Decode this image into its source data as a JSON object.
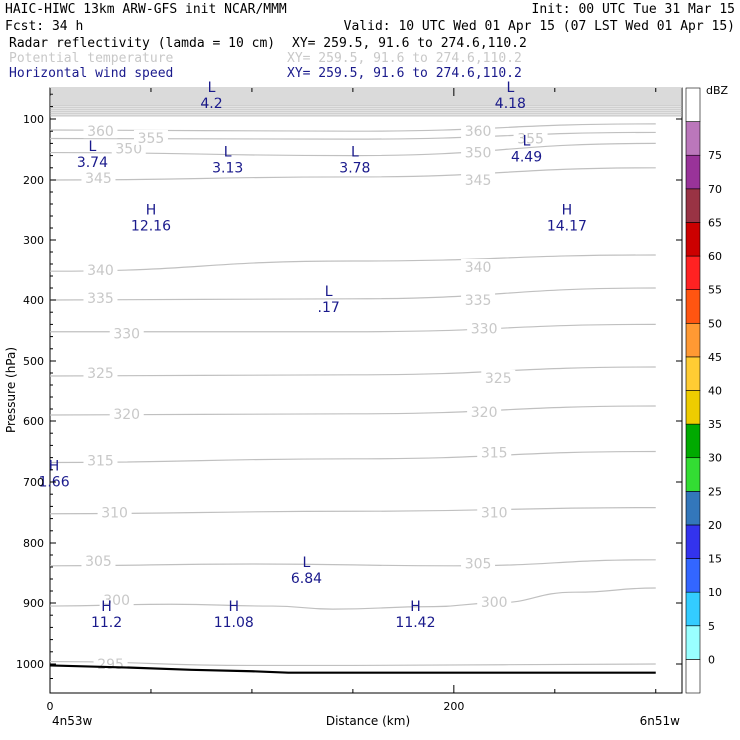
{
  "header": {
    "line1_left": "HAIC-HIWC 13km ARW-GFS init   NCAR/MMM",
    "line1_right": "Init: 00 UTC Tue 31 Mar 15",
    "line2_left": "Fcst:   34 h",
    "line2_right": "Valid: 10 UTC Wed 01 Apr 15 (07 LST Wed 01 Apr 15)",
    "fields": [
      {
        "name": "Radar reflectivity (lamda = 10 cm)",
        "xy": "XY= 259.5, 91.6 to 274.6,110.2",
        "color": "#000000"
      },
      {
        "name": "Potential temperature",
        "xy": "XY= 259.5, 91.6 to 274.6,110.2",
        "color": "#c8c8c8"
      },
      {
        "name": "Horizontal wind speed",
        "xy": "XY= 259.5, 91.6 to 274.6,110.2",
        "color": "#1a1a8c"
      }
    ]
  },
  "chart_data": {
    "type": "cross-section",
    "xlabel": "Distance (km)",
    "ylabel": "Pressure (hPa)",
    "xlim": [
      0,
      300
    ],
    "ylim_pressure": [
      1040,
      50
    ],
    "x_ticks": [
      0,
      200
    ],
    "y_ticks": [
      100,
      200,
      300,
      400,
      500,
      600,
      700,
      800,
      900,
      1000
    ],
    "left_endpoint_label": "4n53w",
    "right_endpoint_label": "6n51w",
    "colorbar": {
      "unit": "dBZ",
      "levels": [
        0,
        5,
        10,
        15,
        20,
        25,
        30,
        35,
        40,
        45,
        50,
        55,
        60,
        65,
        70,
        75
      ],
      "colors": [
        "#ffffff",
        "#99ffff",
        "#33ccff",
        "#3366ff",
        "#3333ee",
        "#3377bb",
        "#33dd33",
        "#00aa00",
        "#eecc00",
        "#ffcc33",
        "#ff9933",
        "#ff5511",
        "#ff2222",
        "#cc0000",
        "#993344",
        "#993399",
        "#bb77bb",
        "#ffffff"
      ]
    },
    "theta_contours": [
      {
        "value": 295,
        "points": [
          [
            0,
            996
          ],
          [
            100,
            1002
          ],
          [
            150,
            1002
          ],
          [
            300,
            1000
          ]
        ],
        "labels": [
          [
            30,
            1000
          ]
        ]
      },
      {
        "value": 300,
        "points": [
          [
            0,
            905
          ],
          [
            60,
            902
          ],
          [
            110,
            905
          ],
          [
            140,
            910
          ],
          [
            190,
            906
          ],
          [
            220,
            900
          ],
          [
            260,
            882
          ],
          [
            300,
            875
          ]
        ],
        "labels": [
          [
            33,
            895
          ],
          [
            220,
            898
          ]
        ]
      },
      {
        "value": 305,
        "points": [
          [
            0,
            838
          ],
          [
            100,
            835
          ],
          [
            200,
            838
          ],
          [
            300,
            828
          ]
        ],
        "labels": [
          [
            24,
            830
          ],
          [
            212,
            834
          ]
        ]
      },
      {
        "value": 310,
        "points": [
          [
            0,
            752
          ],
          [
            150,
            748
          ],
          [
            300,
            742
          ]
        ],
        "labels": [
          [
            32,
            750
          ],
          [
            220,
            750
          ]
        ]
      },
      {
        "value": 315,
        "points": [
          [
            0,
            668
          ],
          [
            150,
            662
          ],
          [
            300,
            650
          ]
        ],
        "labels": [
          [
            25,
            665
          ],
          [
            220,
            652
          ]
        ]
      },
      {
        "value": 320,
        "points": [
          [
            0,
            590
          ],
          [
            150,
            588
          ],
          [
            300,
            575
          ]
        ],
        "labels": [
          [
            38,
            588
          ],
          [
            215,
            585
          ]
        ]
      },
      {
        "value": 325,
        "points": [
          [
            0,
            525
          ],
          [
            150,
            523
          ],
          [
            300,
            510
          ]
        ],
        "labels": [
          [
            25,
            520
          ],
          [
            222,
            528
          ]
        ]
      },
      {
        "value": 330,
        "points": [
          [
            0,
            452
          ],
          [
            150,
            452
          ],
          [
            300,
            440
          ]
        ],
        "labels": [
          [
            38,
            455
          ],
          [
            215,
            447
          ]
        ]
      },
      {
        "value": 335,
        "points": [
          [
            0,
            400
          ],
          [
            150,
            398
          ],
          [
            300,
            380
          ]
        ],
        "labels": [
          [
            25,
            397
          ],
          [
            212,
            400
          ]
        ]
      },
      {
        "value": 340,
        "points": [
          [
            0,
            352
          ],
          [
            150,
            335
          ],
          [
            300,
            325
          ]
        ],
        "labels": [
          [
            25,
            350
          ],
          [
            212,
            345
          ]
        ]
      },
      {
        "value": 345,
        "points": [
          [
            0,
            200
          ],
          [
            150,
            195
          ],
          [
            300,
            180
          ]
        ],
        "labels": [
          [
            24,
            197
          ],
          [
            212,
            200
          ]
        ]
      },
      {
        "value": 350,
        "points": [
          [
            0,
            155
          ],
          [
            150,
            160
          ],
          [
            300,
            140
          ]
        ],
        "labels": [
          [
            39,
            148
          ],
          [
            212,
            155
          ]
        ]
      },
      {
        "value": 355,
        "points": [
          [
            0,
            132
          ],
          [
            150,
            133
          ],
          [
            300,
            122
          ]
        ],
        "labels": [
          [
            50,
            131
          ],
          [
            238,
            132
          ]
        ]
      },
      {
        "value": 360,
        "points": [
          [
            0,
            118
          ],
          [
            150,
            120
          ],
          [
            300,
            108
          ]
        ],
        "labels": [
          [
            25,
            120
          ],
          [
            212,
            120
          ]
        ]
      }
    ],
    "stratosphere_band_hpa": [
      50,
      95
    ],
    "wind_extrema": [
      {
        "type": "L",
        "value": "4.2",
        "x": 80,
        "p": 63
      },
      {
        "type": "L",
        "value": "4.18",
        "x": 228,
        "p": 63
      },
      {
        "type": "L",
        "value": "3.74",
        "x": 21,
        "p": 159
      },
      {
        "type": "L",
        "value": "3.13",
        "x": 88,
        "p": 168
      },
      {
        "type": "L",
        "value": "3.78",
        "x": 151,
        "p": 168
      },
      {
        "type": "L",
        "value": "4.49",
        "x": 236,
        "p": 150
      },
      {
        "type": "H",
        "value": "12.16",
        "x": 50,
        "p": 264
      },
      {
        "type": "H",
        "value": "14.17",
        "x": 256,
        "p": 264
      },
      {
        "type": "L",
        "value": ".17",
        "x": 138,
        "p": 400
      },
      {
        "type": "H",
        "value": "1.66",
        "x": 2,
        "p": 688
      },
      {
        "type": "L",
        "value": "6.84",
        "x": 127,
        "p": 847
      },
      {
        "type": "H",
        "value": "11.2",
        "x": 28,
        "p": 920
      },
      {
        "type": "H",
        "value": "11.08",
        "x": 91,
        "p": 920
      },
      {
        "type": "H",
        "value": "11.42",
        "x": 181,
        "p": 920
      }
    ],
    "terrain": {
      "points": [
        [
          0,
          1002
        ],
        [
          40,
          1005
        ],
        [
          70,
          1008
        ],
        [
          100,
          1010
        ],
        [
          118,
          1012
        ],
        [
          300,
          1012
        ]
      ]
    }
  }
}
